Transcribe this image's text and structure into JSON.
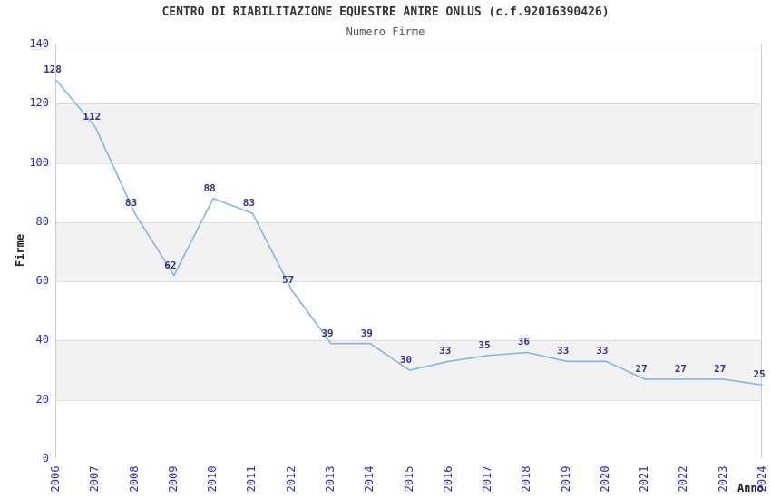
{
  "chart_data": {
    "type": "line",
    "title": "CENTRO DI RIABILITAZIONE EQUESTRE ANIRE ONLUS (c.f.92016390426)",
    "subtitle": "Numero Firme",
    "xlabel": "Anno",
    "ylabel": "Firme",
    "x": [
      2006,
      2007,
      2008,
      2009,
      2010,
      2011,
      2012,
      2013,
      2014,
      2015,
      2016,
      2017,
      2018,
      2019,
      2020,
      2021,
      2022,
      2023,
      2024
    ],
    "series": [
      {
        "name": "Numero Firme",
        "values": [
          128,
          112,
          83,
          62,
          88,
          83,
          57,
          39,
          39,
          30,
          33,
          35,
          36,
          33,
          33,
          27,
          27,
          27,
          25
        ]
      }
    ],
    "data_labels_shown": true,
    "ylim": [
      0,
      140
    ],
    "ytick_step": 20,
    "yticks": [
      0,
      20,
      40,
      60,
      80,
      100,
      120,
      140
    ],
    "grid": "horizontal-bands",
    "legend_position": "none",
    "colors": {
      "line": "#7eb6ec",
      "tick_label": "#2727cd",
      "data_label": "#333388",
      "band_fill": "#f2f2f2",
      "gridline": "#dddddd",
      "plot_border": "#cccccc",
      "title": "#333333",
      "subtitle": "#555555",
      "axis_label": "#222222"
    }
  }
}
